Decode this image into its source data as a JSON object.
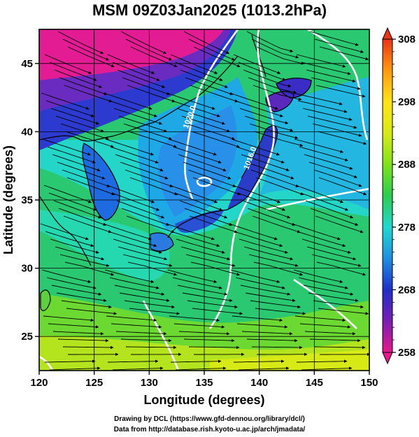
{
  "title": "MSM 09Z03Jan2025 (1013.2hPa)",
  "chart_data": {
    "type": "heatmap",
    "title": "MSM 09Z03Jan2025 (1013.2hPa)",
    "xlabel": "Longitude (degrees)",
    "ylabel": "Latitude  (degrees)",
    "xlim": [
      120,
      150
    ],
    "ylim": [
      22.5,
      47.5
    ],
    "x_ticks": [
      "120",
      "125",
      "130",
      "135",
      "140",
      "145",
      "150"
    ],
    "y_ticks": [
      "25",
      "30",
      "35",
      "40",
      "45"
    ],
    "grid": true,
    "colorbar": {
      "min": 258,
      "max": 308,
      "ticks": [
        "258",
        "268",
        "278",
        "288",
        "298",
        "308"
      ],
      "palette": [
        "#e6188a",
        "#7a1fb3",
        "#1f2fc8",
        "#1e8fe0",
        "#22d8d0",
        "#2ccc50",
        "#7ee21c",
        "#d8ea16",
        "#ffe31a",
        "#ff9a10",
        "#e83418"
      ]
    },
    "contour_labels": [
      {
        "text": "1020.0",
        "lon": 133.5,
        "lat": 40.2
      },
      {
        "text": "1016.0",
        "lon": 139.0,
        "lat": 37.2
      }
    ],
    "contour_interval": 4,
    "map_colors": {
      "coast": "#000000",
      "contour": "#ffffff",
      "streamline": "#000000"
    }
  },
  "credits": {
    "line1": "Drawing by DCL (https://www.gfd-dennou.org/library/dcl/)",
    "line2": "Data from http://database.rish.kyoto-u.ac.jp/arch/jmadata/"
  }
}
